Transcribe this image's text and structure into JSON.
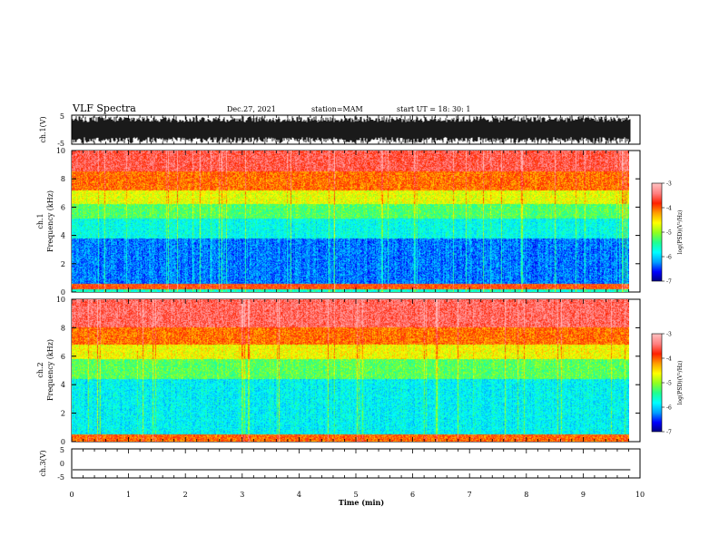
{
  "header": {
    "title": "VLF Spectra",
    "date": "Dec.27, 2021",
    "station": "station=MAM",
    "start": "start UT =  18: 30: 1"
  },
  "colors": {
    "jet": [
      "#00007f",
      "#0000ff",
      "#00a0ff",
      "#00ffff",
      "#20ff90",
      "#90ff20",
      "#ffff00",
      "#ffa000",
      "#ff2000",
      "#ff8080",
      "#ffc0c0"
    ],
    "axis": "#000000"
  },
  "chart_data": [
    {
      "type": "line",
      "name": "ch1-waveform",
      "ylabel": "ch.1(V)",
      "ylim": [
        -5,
        5
      ],
      "yticks": [
        "5",
        "-5"
      ],
      "x_range": [
        0,
        10
      ],
      "description_values": {
        "amplitude_min": -5,
        "amplitude_max": 5
      }
    },
    {
      "type": "heatmap",
      "name": "ch1-spectrogram",
      "ylabel_line1": "ch.1",
      "ylabel_line2": "Frequency (kHz)",
      "ylim": [
        0,
        10
      ],
      "yticks": [
        "0",
        "2",
        "4",
        "6",
        "8",
        "10"
      ],
      "x_range": [
        0,
        9.83
      ],
      "colorbar": {
        "label": "log(PSD)(V²/Hz)",
        "range": [
          -7,
          -3
        ],
        "ticks": [
          "-3",
          "-4",
          "-5",
          "-6",
          "-7"
        ]
      },
      "bands_khz": [
        {
          "lo": 8.5,
          "hi": 10,
          "level": 0.86
        },
        {
          "lo": 7.2,
          "hi": 8.5,
          "level": 0.74
        },
        {
          "lo": 6.2,
          "hi": 7.2,
          "level": 0.58
        },
        {
          "lo": 5.2,
          "hi": 6.2,
          "level": 0.44
        },
        {
          "lo": 3.8,
          "hi": 5.2,
          "level": 0.32
        },
        {
          "lo": 0.6,
          "hi": 3.8,
          "level": 0.18
        },
        {
          "lo": 0.2,
          "hi": 0.6,
          "level": 0.78
        },
        {
          "lo": 0,
          "hi": 0.2,
          "level": 0.35
        }
      ]
    },
    {
      "type": "heatmap",
      "name": "ch2-spectrogram",
      "ylabel_line1": "ch.2",
      "ylabel_line2": "Frequency (kHz)",
      "ylim": [
        0,
        10
      ],
      "yticks": [
        "0",
        "2",
        "4",
        "6",
        "8",
        "10"
      ],
      "x_range": [
        0,
        9.83
      ],
      "colorbar": {
        "label": "log(PSD)(V²/Hz)",
        "range": [
          -7,
          -3
        ],
        "ticks": [
          "-3",
          "-4",
          "-5",
          "-6",
          "-7"
        ]
      },
      "bands_khz": [
        {
          "lo": 8.0,
          "hi": 10,
          "level": 0.88
        },
        {
          "lo": 6.8,
          "hi": 8.0,
          "level": 0.74
        },
        {
          "lo": 5.8,
          "hi": 6.8,
          "level": 0.6
        },
        {
          "lo": 4.4,
          "hi": 5.8,
          "level": 0.45
        },
        {
          "lo": 0.5,
          "hi": 4.4,
          "level": 0.3
        },
        {
          "lo": 0,
          "hi": 0.5,
          "level": 0.75
        }
      ]
    },
    {
      "type": "line",
      "name": "ch3-waveform",
      "ylabel": "ch.3(V)",
      "ylim": [
        -5,
        5
      ],
      "yticks": [
        "5",
        "0",
        "-5"
      ],
      "x": [
        0,
        9.83
      ],
      "y": [
        -2.2,
        -2.2
      ]
    }
  ],
  "xaxis": {
    "label": "Time (min)",
    "range": [
      0,
      10
    ],
    "ticks": [
      "0",
      "1",
      "2",
      "3",
      "4",
      "5",
      "6",
      "7",
      "8",
      "9",
      "10"
    ]
  }
}
